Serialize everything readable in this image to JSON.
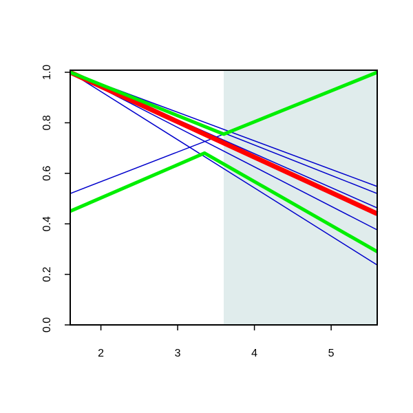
{
  "chart_data": {
    "type": "line",
    "xlim": [
      1.6,
      5.6
    ],
    "ylim": [
      0,
      1
    ],
    "xticks": [
      2,
      3,
      4,
      5
    ],
    "yticks": [
      {
        "value": 0,
        "label": "0.0"
      },
      {
        "value": 0.2,
        "label": "0.2"
      },
      {
        "value": 0.4,
        "label": "0.4"
      },
      {
        "value": 0.6,
        "label": "0.6"
      },
      {
        "value": 0.8,
        "label": "0.8"
      },
      {
        "value": 1,
        "label": "1.0"
      }
    ],
    "shade_xlim": [
      3.6,
      5.6
    ],
    "shade_color": "#e0ecec",
    "series": [
      {
        "color": "#0000cc",
        "width": 1.5,
        "x": [
          1.6,
          5.6
        ],
        "values": [
          1.0,
          0.548
        ]
      },
      {
        "color": "#0000cc",
        "width": 1.5,
        "x": [
          1.6,
          5.6
        ],
        "values": [
          1.0,
          0.52
        ]
      },
      {
        "color": "#0000cc",
        "width": 1.5,
        "x": [
          1.6,
          5.6
        ],
        "values": [
          1.0,
          0.463
        ]
      },
      {
        "color": "#0000cc",
        "width": 1.5,
        "x": [
          1.6,
          5.6
        ],
        "values": [
          1.0,
          0.376
        ]
      },
      {
        "color": "#0000cc",
        "width": 1.5,
        "x": [
          1.6,
          5.6
        ],
        "values": [
          1.0,
          0.237
        ]
      },
      {
        "color": "#0000cc",
        "width": 1.5,
        "x": [
          1.6,
          3.6
        ],
        "values": [
          0.52,
          0.755
        ]
      },
      {
        "color": "#ff0000",
        "width": 7,
        "x": [
          1.6,
          5.6
        ],
        "values": [
          1.0,
          0.44
        ]
      },
      {
        "color": "#00ee00",
        "width": 5,
        "x": [
          1.6,
          3.6,
          5.6
        ],
        "values": [
          1.0,
          0.755,
          1.0
        ]
      },
      {
        "color": "#00ee00",
        "width": 5,
        "x": [
          1.6,
          3.35,
          5.6
        ],
        "values": [
          0.45,
          0.68,
          0.29
        ]
      }
    ]
  }
}
